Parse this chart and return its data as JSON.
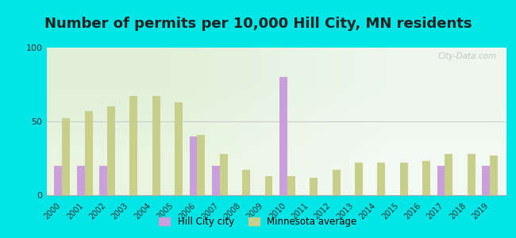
{
  "title": "Number of permits per 10,000 Hill City, MN residents",
  "years": [
    2000,
    2001,
    2002,
    2003,
    2004,
    2005,
    2006,
    2007,
    2008,
    2009,
    2010,
    2011,
    2012,
    2013,
    2014,
    2015,
    2016,
    2017,
    2018,
    2019
  ],
  "hill_city": [
    20,
    20,
    20,
    0,
    0,
    0,
    40,
    20,
    0,
    0,
    80,
    0,
    0,
    0,
    0,
    0,
    0,
    20,
    0,
    20
  ],
  "mn_average": [
    52,
    57,
    60,
    67,
    67,
    63,
    41,
    28,
    17,
    13,
    13,
    12,
    17,
    22,
    22,
    22,
    23,
    28,
    28,
    27
  ],
  "hill_city_color": "#c9a0dc",
  "mn_average_color": "#c8cf8a",
  "figure_bg": "#00e5e5",
  "ylim": [
    0,
    100
  ],
  "yticks": [
    0,
    50,
    100
  ],
  "bar_width": 0.35,
  "title_fontsize": 13,
  "legend_label_city": "Hill City city",
  "legend_label_mn": "Minnesota average",
  "watermark": "City-Data.com"
}
